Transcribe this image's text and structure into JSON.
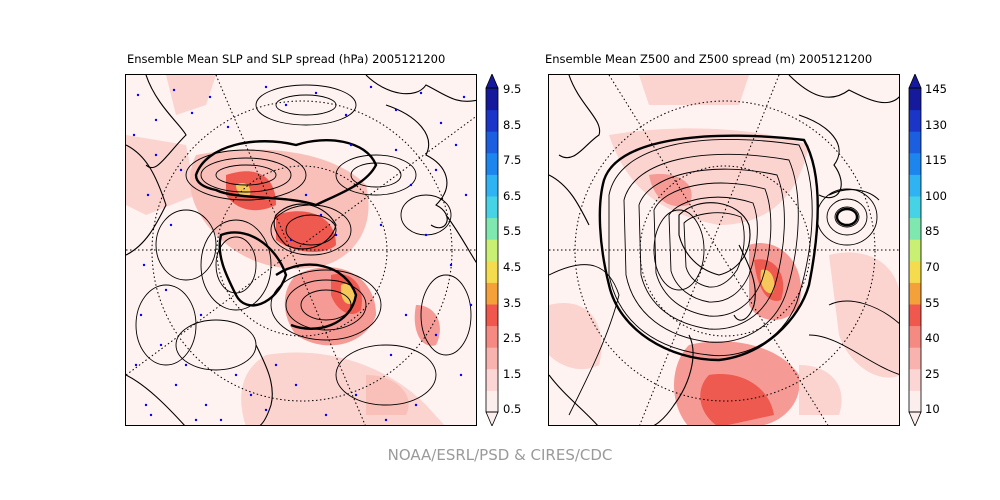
{
  "left_panel": {
    "title": "Ensemble Mean SLP and SLP spread (hPa) 2005121200",
    "colorbar_ticks": [
      "9.5",
      "8.5",
      "7.5",
      "6.5",
      "5.5",
      "4.5",
      "3.5",
      "2.5",
      "1.5",
      "0.5"
    ]
  },
  "right_panel": {
    "title": "Ensemble Mean Z500 and Z500 spread (m) 2005121200",
    "colorbar_ticks": [
      "145",
      "130",
      "115",
      "100",
      "85",
      "70",
      "55",
      "40",
      "25",
      "10"
    ]
  },
  "credit": "NOAA/ESRL/PSD & CIRES/CDC",
  "colors": {
    "map_background": "#fff3f1",
    "spread_light": "#fbd3cf",
    "spread_mid": "#f59a94",
    "spread_high": "#ee5a4f",
    "spread_peak": "#f6c75a",
    "station_dots": "#0000ff",
    "contours": "#000000"
  },
  "colorbar_scale": [
    "#fdeeee",
    "#fcd6d4",
    "#f9b3ae",
    "#f58a82",
    "#f0584e",
    "#f4a13a",
    "#f5dc4e",
    "#c9f072",
    "#7fe8b0",
    "#47d3e6",
    "#2fb3f2",
    "#1d86ee",
    "#1b5ee0",
    "#1a35c8",
    "#151a9c"
  ]
}
